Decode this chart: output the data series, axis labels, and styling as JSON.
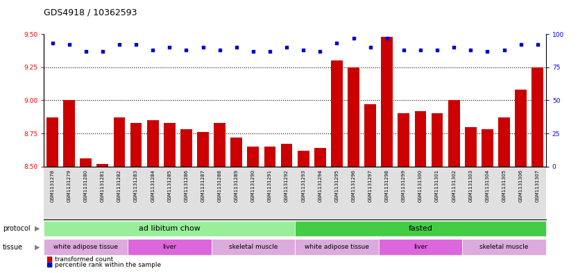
{
  "title": "GDS4918 / 10362593",
  "samples": [
    "GSM1131278",
    "GSM1131279",
    "GSM1131280",
    "GSM1131281",
    "GSM1131282",
    "GSM1131283",
    "GSM1131284",
    "GSM1131285",
    "GSM1131286",
    "GSM1131287",
    "GSM1131288",
    "GSM1131289",
    "GSM1131290",
    "GSM1131291",
    "GSM1131292",
    "GSM1131293",
    "GSM1131294",
    "GSM1131295",
    "GSM1131296",
    "GSM1131297",
    "GSM1131298",
    "GSM1131299",
    "GSM1131300",
    "GSM1131301",
    "GSM1131302",
    "GSM1131303",
    "GSM1131304",
    "GSM1131305",
    "GSM1131306",
    "GSM1131307"
  ],
  "bar_values": [
    8.87,
    9.0,
    8.56,
    8.52,
    8.87,
    8.83,
    8.85,
    8.83,
    8.78,
    8.76,
    8.83,
    8.72,
    8.65,
    8.65,
    8.67,
    8.62,
    8.64,
    9.3,
    9.25,
    8.97,
    9.48,
    8.9,
    8.92,
    8.9,
    9.0,
    8.8,
    8.78,
    8.87,
    9.08,
    9.25
  ],
  "percentile_values": [
    93,
    92,
    87,
    87,
    92,
    92,
    88,
    90,
    88,
    90,
    88,
    90,
    87,
    87,
    90,
    88,
    87,
    93,
    97,
    90,
    97,
    88,
    88,
    88,
    90,
    88,
    87,
    88,
    92,
    92
  ],
  "bar_color": "#cc0000",
  "dot_color": "#0000cc",
  "ylim_left": [
    8.5,
    9.5
  ],
  "ylim_right": [
    0,
    100
  ],
  "yticks_left": [
    8.5,
    8.75,
    9.0,
    9.25,
    9.5
  ],
  "yticks_right": [
    0,
    25,
    50,
    75,
    100
  ],
  "grid_values": [
    8.75,
    9.0,
    9.25
  ],
  "protocol_groups": [
    {
      "label": "ad libitum chow",
      "start": 0,
      "end": 15,
      "color": "#99ee99"
    },
    {
      "label": "fasted",
      "start": 15,
      "end": 30,
      "color": "#44cc44"
    }
  ],
  "tissue_groups": [
    {
      "label": "white adipose tissue",
      "start": 0,
      "end": 5,
      "color": "#ddaadd"
    },
    {
      "label": "liver",
      "start": 5,
      "end": 10,
      "color": "#dd66dd"
    },
    {
      "label": "skeletal muscle",
      "start": 10,
      "end": 15,
      "color": "#ddaadd"
    },
    {
      "label": "white adipose tissue",
      "start": 15,
      "end": 20,
      "color": "#ddaadd"
    },
    {
      "label": "liver",
      "start": 20,
      "end": 25,
      "color": "#dd66dd"
    },
    {
      "label": "skeletal muscle",
      "start": 25,
      "end": 30,
      "color": "#ddaadd"
    }
  ],
  "legend_items": [
    {
      "label": "transformed count",
      "color": "#cc0000"
    },
    {
      "label": "percentile rank within the sample",
      "color": "#0000cc"
    }
  ],
  "tick_fontsize": 6.5,
  "title_fontsize": 9,
  "label_fontsize": 7
}
